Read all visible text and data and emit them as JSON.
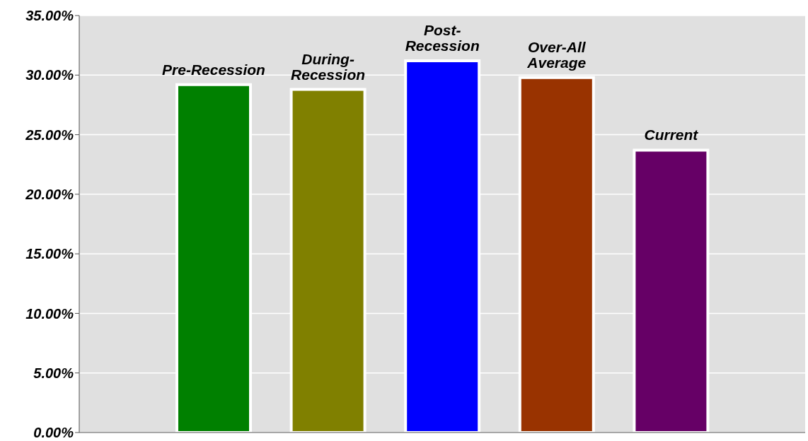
{
  "chart_data": {
    "type": "bar",
    "categories": [
      "Pre-Recession",
      "During-Recession",
      "Post-Recession",
      "Over-All Average",
      "Current"
    ],
    "values": [
      29.2,
      28.8,
      31.2,
      29.8,
      23.7
    ],
    "colors": [
      "#008000",
      "#808000",
      "#0000ff",
      "#993300",
      "#660066"
    ],
    "ylim": [
      0,
      35
    ],
    "yticks": [
      {
        "value": 0,
        "label": "0.00%"
      },
      {
        "value": 5,
        "label": "5.00%"
      },
      {
        "value": 10,
        "label": "10.00%"
      },
      {
        "value": 15,
        "label": "15.00%"
      },
      {
        "value": 20,
        "label": "20.00%"
      },
      {
        "value": 25,
        "label": "25.00%"
      },
      {
        "value": 30,
        "label": "30.00%"
      },
      {
        "value": 35,
        "label": "35.00%"
      }
    ],
    "grid": "y",
    "tick_labels": "y"
  }
}
